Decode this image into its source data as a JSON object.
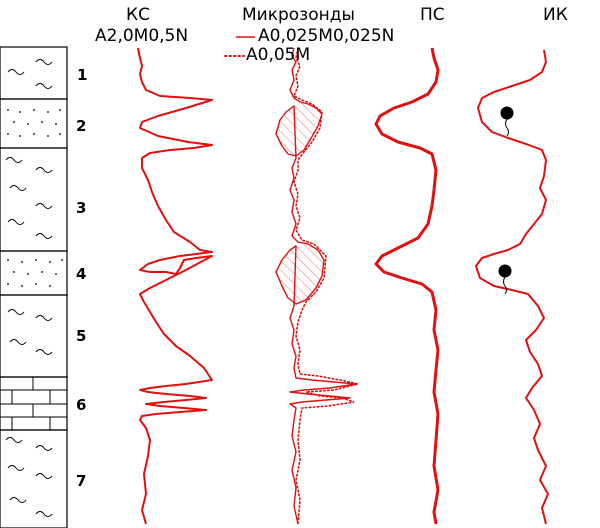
{
  "headers": {
    "ks_title": "КС",
    "ks_probe": "A2,0M0,5N",
    "micro_title": "Микрозонды",
    "micro_legend_solid": "A0,025M0,025N",
    "micro_legend_dotted": "A0,05M",
    "ps_title": "ПС",
    "ik_title": "ИК"
  },
  "layers": [
    {
      "number": "1",
      "lithology": "clay"
    },
    {
      "number": "2",
      "lithology": "sand"
    },
    {
      "number": "3",
      "lithology": "clay"
    },
    {
      "number": "4",
      "lithology": "sand"
    },
    {
      "number": "5",
      "lithology": "clay"
    },
    {
      "number": "6",
      "lithology": "limestone"
    },
    {
      "number": "7",
      "lithology": "clay"
    }
  ],
  "colors": {
    "curve": "#e01010",
    "hatch": "#f08a8a",
    "ink": "#000000"
  }
}
